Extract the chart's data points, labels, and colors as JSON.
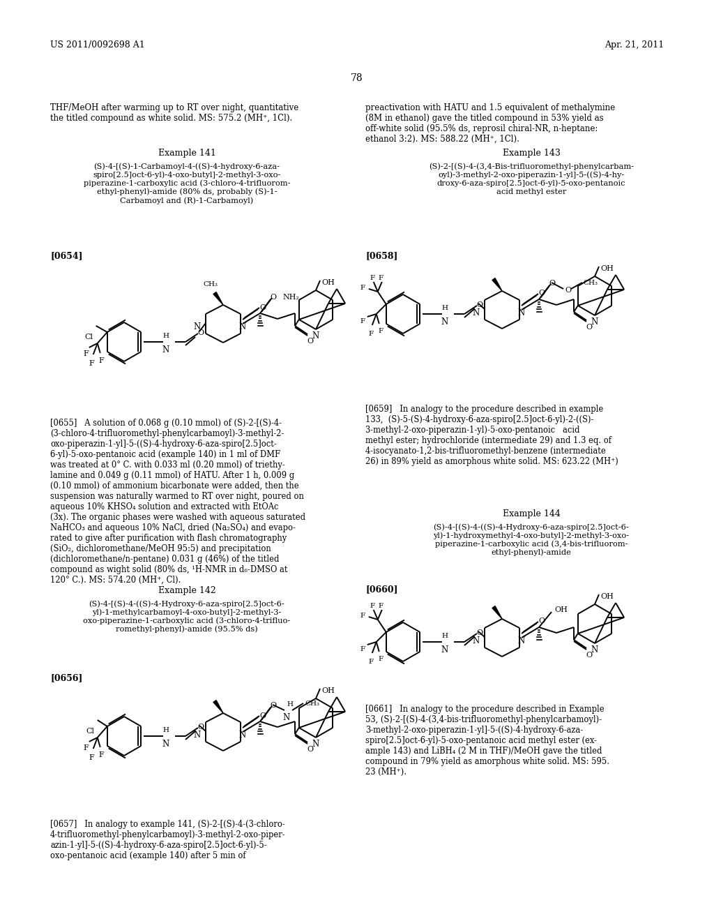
{
  "page_header_left": "US 2011/0092698 A1",
  "page_header_right": "Apr. 21, 2011",
  "page_number": "78",
  "background_color": "#ffffff",
  "text_color": "#000000",
  "top_text_left": "THF/MeOH after warming up to RT over night, quantitative\nthe titled compound as white solid. MS: 575.2 (MH⁺, 1Cl).",
  "top_text_right": "preactivation with HATU and 1.5 equivalent of methalymine\n(8M in ethanol) gave the titled compound in 53% yield as\noff-white solid (95.5% ds, reprosil chiral-NR, n-heptane:\nethanol 3:2). MS: 588.22 (MH⁺, 1Cl).",
  "example141_title": "Example 141",
  "example141_compound": "(S)-4-[(S)-1-Carbamoyl-4-((S)-4-hydroxy-6-aza-\nspiro[2.5]oct-6-yl)-4-oxo-butyl]-2-methyl-3-oxo-\npiperazine-1-carboxylic acid (3-chloro-4-trifluorom-\nethyl-phenyl)-amide (80% ds, probably (S)-1-\nCarbamoyl and (R)-1-Carbamoyl)",
  "example141_bracket": "[0654]",
  "example142_title": "Example 142",
  "example142_compound": "(S)-4-[(S)-4-((S)-4-Hydroxy-6-aza-spiro[2.5]oct-6-\nyl)-1-methylcarbamoyl-4-oxo-butyl]-2-methyl-3-\noxo-piperazine-1-carboxylic acid (3-chloro-4-trifluo-\nromethyl-phenyl)-amide (95.5% ds)",
  "example142_bracket": "[0656]",
  "example143_title": "Example 143",
  "example143_compound": "(S)-2-[(S)-4-(3,4-Bis-trifluoromethyl-phenylcarbam-\noyl)-3-methyl-2-oxo-piperazin-1-yl]-5-((S)-4-hy-\ndroxy-6-aza-spiro[2.5]oct-6-yl)-5-oxo-pentanoic\nacid methyl ester",
  "example143_bracket": "[0658]",
  "example144_title": "Example 144",
  "example144_compound": "(S)-4-[(S)-4-((S)-4-Hydroxy-6-aza-spiro[2.5]oct-6-\nyl)-1-hydroxymethyl-4-oxo-butyl]-2-methyl-3-oxo-\npiperazine-1-carboxylic acid (3,4-bis-trifluorom-\nethyl-phenyl)-amide",
  "example144_bracket": "[0660]",
  "para0655": "[0655]   A solution of 0.068 g (0.10 mmol) of (S)-2-[(S)-4-\n(3-chloro-4-trifluoromethyl-phenylcarbamoyl)-3-methyl-2-\noxo-piperazin-1-yl]-5-((S)-4-hydroxy-6-aza-spiro[2.5]oct-\n6-yl)-5-oxo-pentanoic acid (example 140) in 1 ml of DMF\nwas treated at 0° C. with 0.033 ml (0.20 mmol) of triethy-\nlamine and 0.049 g (0.11 mmol) of HATU. After 1 h, 0.009 g\n(0.10 mmol) of ammonium bicarbonate were added, then the\nsuspension was naturally warmed to RT over night, poured on\naqueous 10% KHSO₄ solution and extracted with EtOAc\n(3x). The organic phases were washed with aqueous saturated\nNaHCO₃ and aqueous 10% NaCl, dried (Na₂SO₄) and evapo-\nrated to give after purification with flash chromatography\n(SiO₂, dichloromethane/MeOH 95:5) and precipitation\n(dichloromethane/n-pentane) 0.031 g (46%) of the titled\ncompound as wight solid (80% ds, ¹H-NMR in d₆-DMSO at\n120° C.). MS: 574.20 (MH⁺, Cl).",
  "para0657": "[0657]   In analogy to example 141, (S)-2-[(S)-4-(3-chloro-\n4-trifluoromethyl-phenylcarbamoyl)-3-methyl-2-oxo-piper-\nazin-1-yl]-5-((S)-4-hydroxy-6-aza-spiro[2.5]oct-6-yl)-5-\noxo-pentanoic acid (example 140) after 5 min of",
  "para0659": "[0659]   In analogy to the procedure described in example\n133,  (S)-5-(S)-4-hydroxy-6-aza-spiro[2.5]oct-6-yl)-2-((S)-\n3-methyl-2-oxo-piperazin-1-yl)-5-oxo-pentanoic   acid\nmethyl ester; hydrochloride (intermediate 29) and 1.3 eq. of\n4-isocyanato-1,2-bis-trifluoromethyl-benzene (intermediate\n26) in 89% yield as amorphous white solid. MS: 623.22 (MH⁺)",
  "para0661": "[0661]   In analogy to the procedure described in Example\n53, (S)-2-[(S)-4-(3,4-bis-trifluoromethyl-phenylcarbamoyl)-\n3-methyl-2-oxo-piperazin-1-yl]-5-((S)-4-hydroxy-6-aza-\nspiro[2.5]oct-6-yl)-5-oxo-pentanoic acid methyl ester (ex-\nample 143) and LiBH₄ (2 M in THF)/MeOH gave the titled\ncompound in 79% yield as amorphous white solid. MS: 595.\n23 (MH⁺)."
}
